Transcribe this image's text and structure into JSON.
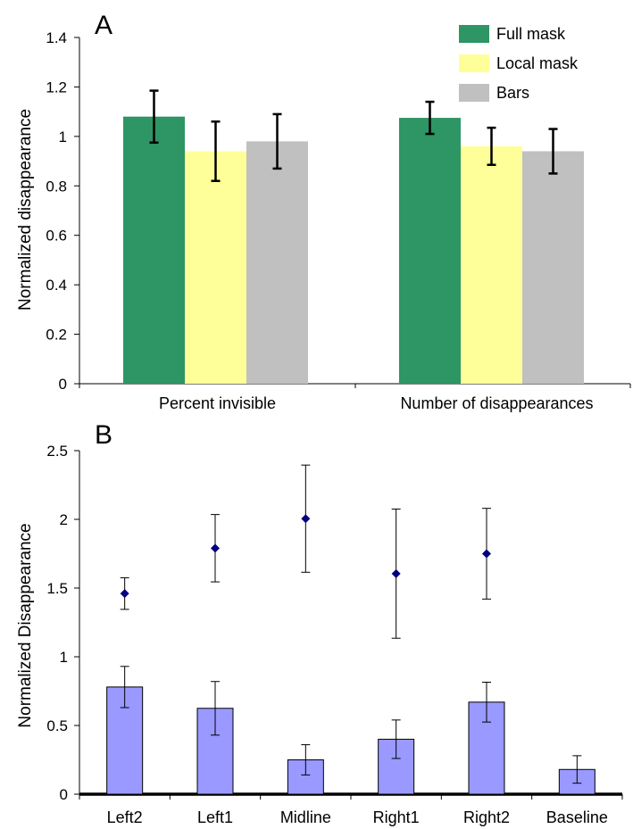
{
  "chart_data": [
    {
      "panel_label": "A",
      "type": "bar",
      "categories": [
        "Percent invisible",
        "Number of disappearances"
      ],
      "series": [
        {
          "name": "Full mask",
          "color": "#2e9565",
          "values": [
            1.08,
            1.075
          ],
          "errors": [
            0.105,
            0.065
          ]
        },
        {
          "name": "Local mask",
          "color": "#ffff99",
          "values": [
            0.94,
            0.96
          ],
          "errors": [
            0.12,
            0.075
          ]
        },
        {
          "name": "Bars",
          "color": "#c0c0c0",
          "values": [
            0.98,
            0.94
          ],
          "errors": [
            0.11,
            0.09
          ]
        }
      ],
      "xlabel": "",
      "ylabel": "Normalized disappearance",
      "ylim": [
        0,
        1.4
      ],
      "yticks": [
        "0",
        "0.2",
        "0.4",
        "0.6",
        "0.8",
        "1",
        "1.2",
        "1.4"
      ],
      "grid": false,
      "legend": "top-right"
    },
    {
      "panel_label": "B",
      "type": "bar",
      "categories": [
        "Left2",
        "Left1",
        "Midline",
        "Right1",
        "Right2",
        "Baseline"
      ],
      "series": [
        {
          "color": "#9999ff",
          "values": [
            0.78,
            0.625,
            0.25,
            0.4,
            0.67,
            0.18
          ],
          "errors": [
            0.15,
            0.195,
            0.11,
            0.14,
            0.145,
            0.1
          ]
        },
        {
          "color": "#000080",
          "marker": "diamond",
          "values": [
            1.46,
            1.79,
            2.005,
            1.605,
            1.75,
            null
          ],
          "errors": [
            0.115,
            0.245,
            0.39,
            0.47,
            0.33,
            null
          ]
        }
      ],
      "xlabel": "",
      "ylabel": "Normalized Disappearance",
      "ylim": [
        0,
        2.5
      ],
      "yticks": [
        "0",
        "0.5",
        "1",
        "1.5",
        "2",
        "2.5"
      ],
      "grid": false,
      "legend": "none"
    }
  ]
}
